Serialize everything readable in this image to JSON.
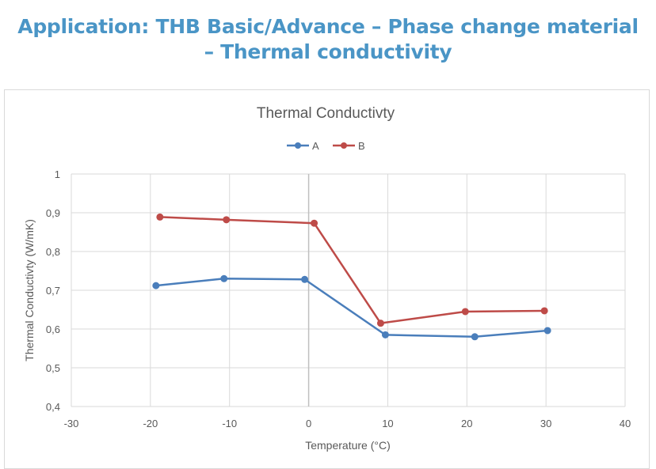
{
  "slide": {
    "title_line1": "Application: THB Basic/Advance – Phase change material",
    "title_line2": "– Thermal conductivity",
    "title_color": "#4a95c6"
  },
  "chart_data": {
    "type": "line",
    "title": "Thermal Conductivty",
    "xlabel": "Temperature (°C)",
    "ylabel": "Thermal Conductivty (W/mK)",
    "xlim": [
      -30,
      40
    ],
    "ylim": [
      0.4,
      1
    ],
    "xticks": [
      -30,
      -20,
      -10,
      0,
      10,
      20,
      30,
      40
    ],
    "xtick_labels": [
      "-30",
      "-20",
      "-10",
      "0",
      "10",
      "20",
      "30",
      "40"
    ],
    "yticks": [
      0.4,
      0.5,
      0.6,
      0.7,
      0.8,
      0.9,
      1
    ],
    "ytick_labels": [
      "0,4",
      "0,5",
      "0,6",
      "0,7",
      "0,8",
      "0,9",
      "1"
    ],
    "grid": true,
    "legend_position": "top",
    "series": [
      {
        "name": "A",
        "color": "#4a7ebb",
        "x": [
          -19.3,
          -10.7,
          -0.5,
          9.7,
          21.0,
          30.2
        ],
        "y": [
          0.712,
          0.73,
          0.728,
          0.585,
          0.58,
          0.596
        ]
      },
      {
        "name": "B",
        "color": "#be4b48",
        "x": [
          -18.8,
          -10.4,
          0.7,
          9.1,
          19.8,
          29.8
        ],
        "y": [
          0.889,
          0.882,
          0.873,
          0.615,
          0.645,
          0.647
        ]
      }
    ]
  }
}
